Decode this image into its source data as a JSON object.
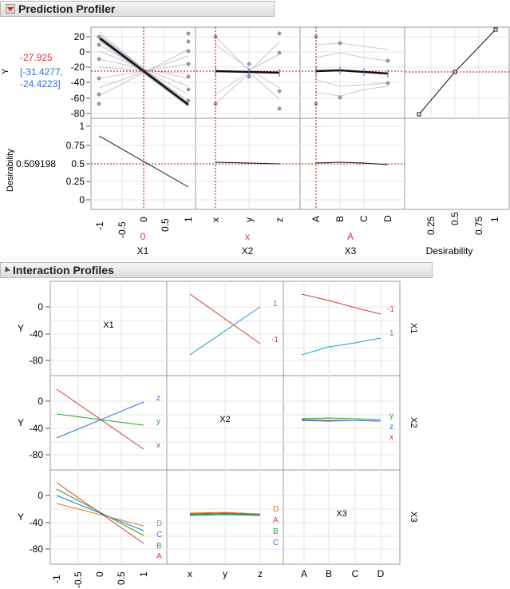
{
  "profiler": {
    "title": "Prediction Profiler",
    "y_label": "Y",
    "y_value": "-27.925",
    "y_ci_line1": "[-31.4277,",
    "y_ci_line2": "-24.4223]",
    "desir_label": "Desirability",
    "desir_value": "0.509198",
    "y_ticks": [
      "20",
      "0",
      "-20",
      "-40",
      "-60",
      "-80"
    ],
    "d_ticks": [
      "1",
      "0.75",
      "0.5",
      "0.25",
      "0"
    ],
    "x1_ticks": [
      "-1",
      "-0.5",
      "0",
      "0.5",
      "1"
    ],
    "x2_ticks": [
      "x",
      "y",
      "z"
    ],
    "x3_ticks": [
      "A",
      "B",
      "C",
      "D"
    ],
    "dx_ticks": [
      "0.25",
      "0.5",
      "0.75",
      "1"
    ],
    "factors": [
      {
        "name": "X1",
        "value": "0"
      },
      {
        "name": "X2",
        "value": "x"
      },
      {
        "name": "X3",
        "value": "A"
      },
      {
        "name": "Desirability",
        "value": ""
      }
    ]
  },
  "interaction": {
    "title": "Interaction Profiles",
    "y_label": "Y",
    "y_ticks": [
      "0",
      "-40",
      "-80"
    ],
    "row_factors": [
      "X1",
      "X2",
      "X3"
    ],
    "diag_labels": [
      "X1",
      "X2",
      "X3"
    ],
    "x1_ticks": [
      "-1",
      "-0.5",
      "0",
      "0.5",
      "1"
    ],
    "x2_ticks": [
      "x",
      "y",
      "z"
    ],
    "x3_ticks": [
      "A",
      "B",
      "C",
      "D"
    ],
    "legend_x1": [
      "1",
      "-1"
    ],
    "legend_x2": [
      "z",
      "y",
      "x"
    ],
    "legend_x3": [
      "D",
      "C",
      "B",
      "A"
    ],
    "legend_x3_b": [
      "D",
      "A",
      "B",
      "C"
    ],
    "legend_x2_b": [
      "y",
      "z",
      "x"
    ]
  },
  "colors": {
    "red": "#d63a3a",
    "blue": "#2f6fd6",
    "teal": "#1f9bd1",
    "green": "#2ca02c",
    "orange": "#e07b25",
    "grid": "#e3e3e3",
    "refline": "#c00000"
  }
}
